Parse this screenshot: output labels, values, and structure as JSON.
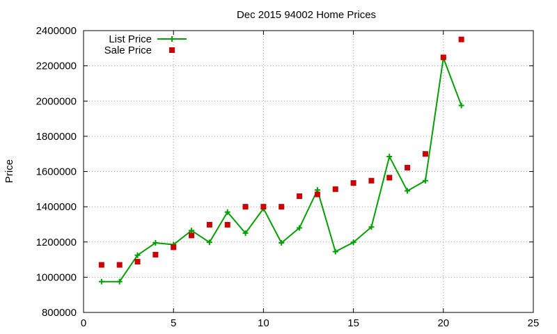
{
  "chart_data": {
    "type": "line",
    "title": "Dec 2015 94002 Home Prices",
    "xlabel": "",
    "ylabel": "Price",
    "xlim": [
      0,
      25
    ],
    "ylim": [
      800000,
      2400000
    ],
    "x_ticks": [
      "0",
      "5",
      "10",
      "15",
      "20",
      "25"
    ],
    "y_ticks": [
      "800000",
      "1000000",
      "1200000",
      "1400000",
      "1600000",
      "1800000",
      "2000000",
      "2200000",
      "2400000"
    ],
    "x_tick_values": [
      0,
      5,
      10,
      15,
      20,
      25
    ],
    "y_tick_values": [
      800000,
      1000000,
      1200000,
      1400000,
      1600000,
      1800000,
      2000000,
      2200000,
      2400000
    ],
    "grid": true,
    "legend_position": "top-left",
    "series": [
      {
        "name": "List Price",
        "style": "line+plus",
        "color": "#00a000",
        "x": [
          1,
          2,
          3,
          4,
          5,
          6,
          7,
          8,
          9,
          10,
          11,
          12,
          13,
          14,
          15,
          16,
          17,
          18,
          19,
          20,
          21
        ],
        "y": [
          975000,
          975000,
          1125000,
          1195000,
          1185000,
          1265000,
          1198000,
          1370000,
          1250000,
          1390000,
          1195000,
          1280000,
          1495000,
          1145000,
          1198000,
          1285000,
          1685000,
          1490000,
          1548000,
          2245000,
          1975000
        ]
      },
      {
        "name": "Sale Price",
        "style": "square-points",
        "color": "#cc0000",
        "x": [
          1,
          2,
          3,
          4,
          5,
          6,
          7,
          8,
          9,
          10,
          11,
          12,
          13,
          14,
          15,
          16,
          17,
          18,
          19,
          20,
          21
        ],
        "y": [
          1070000,
          1070000,
          1088000,
          1128000,
          1170000,
          1237000,
          1298000,
          1298000,
          1400000,
          1400000,
          1400000,
          1460000,
          1470000,
          1500000,
          1535000,
          1548000,
          1565000,
          1622000,
          1700000,
          2248000,
          2350000
        ]
      }
    ]
  }
}
